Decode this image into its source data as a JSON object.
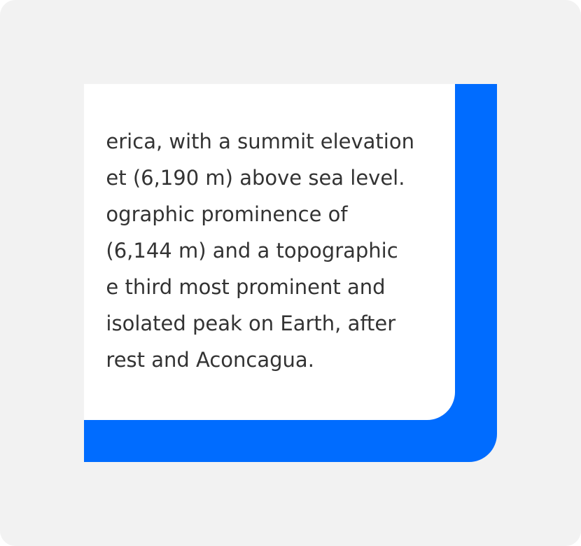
{
  "colors": {
    "background": "#f2f2f2",
    "accent": "#006cff",
    "card": "#ffffff",
    "text": "#333333"
  },
  "card": {
    "lines": [
      "erica, with a summit elevation",
      "et (6,190 m) above sea level.",
      "ographic prominence of",
      "(6,144 m) and a topographic",
      "e third most prominent and",
      "isolated peak on Earth, after",
      "rest and Aconcagua."
    ]
  }
}
